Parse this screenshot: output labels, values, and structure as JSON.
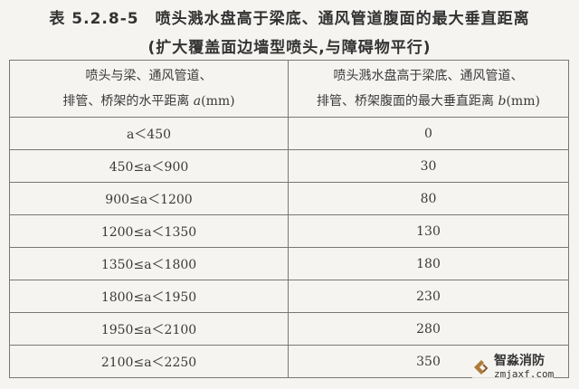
{
  "title": {
    "line1": "表 5.2.8-5　喷头溅水盘高于梁底、通风管道腹面的最大垂直距离",
    "line2": "(扩大覆盖面边墙型喷头,与障碍物平行)"
  },
  "table": {
    "headers": [
      {
        "line1": "喷头与梁、通风管道、",
        "line2_prefix": "排管、桥架的水平距离 ",
        "var": "a",
        "unit": "(mm)"
      },
      {
        "line1": "喷头溅水盘高于梁底、通风管道、",
        "line2_prefix": "排管、桥架腹面的最大垂直距离 ",
        "var": "b",
        "unit": "(mm)"
      }
    ],
    "rows": [
      {
        "a": "a＜450",
        "b": "0"
      },
      {
        "a": "450≤a＜900",
        "b": "30"
      },
      {
        "a": "900≤a＜1200",
        "b": "80"
      },
      {
        "a": "1200≤a＜1350",
        "b": "130"
      },
      {
        "a": "1350≤a＜1800",
        "b": "180"
      },
      {
        "a": "1800≤a＜1950",
        "b": "230"
      },
      {
        "a": "1950≤a＜2100",
        "b": "280"
      },
      {
        "a": "2100≤a＜2250",
        "b": "350"
      }
    ]
  },
  "watermark": {
    "name": "智淼消防",
    "url": "zmjaxf.com",
    "color": "#b07a3a"
  }
}
